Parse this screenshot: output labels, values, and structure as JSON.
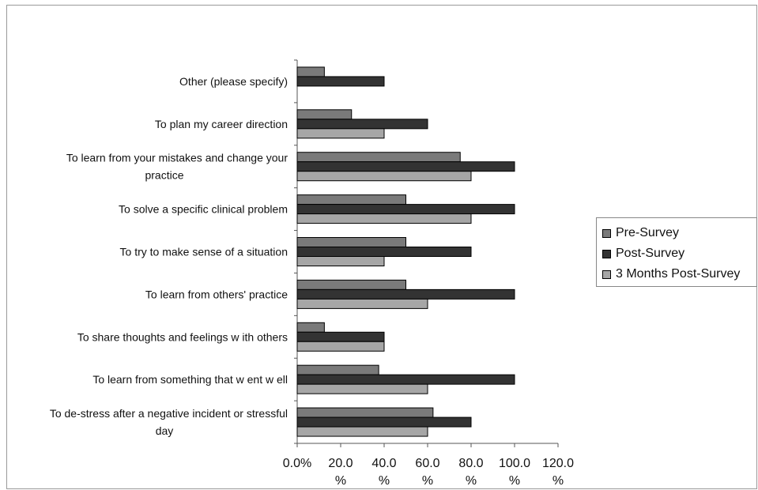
{
  "chart_data": {
    "type": "bar",
    "orientation": "horizontal",
    "title": "",
    "xlabel": "",
    "ylabel": "",
    "xlim": [
      0,
      120
    ],
    "ticks": [
      0,
      20,
      40,
      60,
      80,
      100,
      120
    ],
    "tick_labels": [
      [
        "0.0%"
      ],
      [
        "20.0",
        "%"
      ],
      [
        "40.0",
        "%"
      ],
      [
        "60.0",
        "%"
      ],
      [
        "80.0",
        "%"
      ],
      [
        "100.0",
        "%"
      ],
      [
        "120.0",
        "%"
      ]
    ],
    "grid": false,
    "legend_position": "right",
    "categories": [
      [
        "Other (please specify)"
      ],
      [
        "To plan my career direction"
      ],
      [
        "To learn from your mistakes and change your",
        "practice"
      ],
      [
        "To solve a specific clinical problem"
      ],
      [
        "To try to make sense of a situation"
      ],
      [
        "To learn from others' practice"
      ],
      [
        "To share thoughts and feelings w ith others"
      ],
      [
        "To learn from something that w ent w ell"
      ],
      [
        "To de-stress after a negative incident or stressful",
        "day"
      ]
    ],
    "series": [
      {
        "name": "Pre-Survey",
        "color": "#7a7a7a",
        "values": [
          12.5,
          25,
          75,
          50,
          50,
          50,
          12.5,
          37.5,
          62.5
        ]
      },
      {
        "name": "Post-Survey",
        "color": "#333333",
        "values": [
          40,
          60,
          100,
          100,
          80,
          100,
          40,
          100,
          80
        ]
      },
      {
        "name": "3 Months Post-Survey",
        "color": "#a6a6a6",
        "values": [
          0,
          40,
          80,
          80,
          40,
          60,
          40,
          60,
          60
        ]
      }
    ]
  }
}
